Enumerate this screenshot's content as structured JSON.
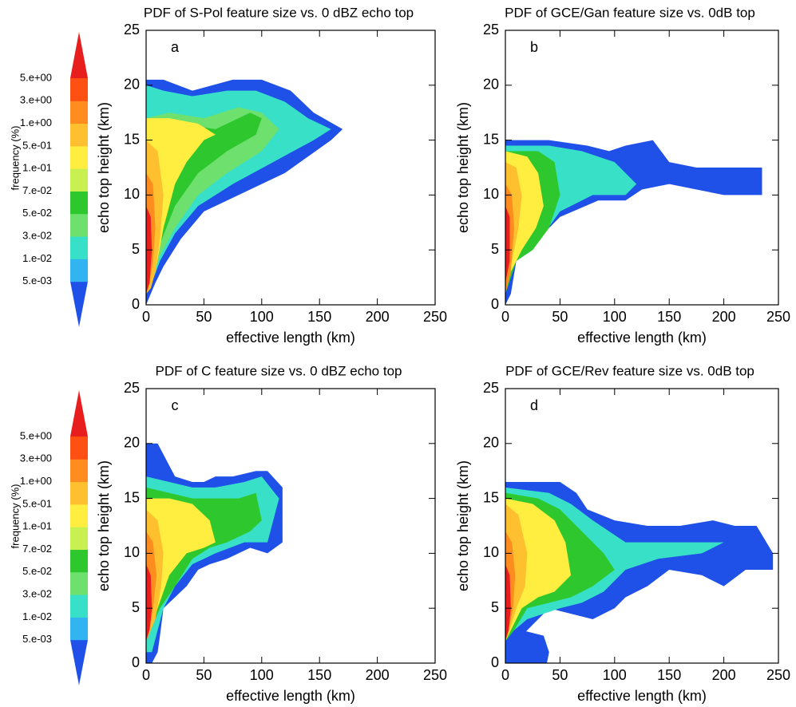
{
  "chart_data": [
    {
      "type": "contour",
      "title": "PDF of S-Pol feature size vs. 0 dBZ echo top",
      "panel_label": "a",
      "x_label": "effective length (km)",
      "y_label": "echo top height (km)",
      "xlim": [
        0,
        250
      ],
      "ylim": [
        0,
        25
      ],
      "xticks": [
        0,
        50,
        100,
        150,
        200,
        250
      ],
      "yticks": [
        0,
        5,
        10,
        15,
        20,
        25
      ],
      "regions": [
        {
          "color": "#1f50e8",
          "x": [
            0,
            15,
            40,
            75,
            100,
            125,
            145,
            170,
            160,
            120,
            80,
            50,
            30,
            15,
            8,
            0
          ],
          "y": [
            20.5,
            20.5,
            19.5,
            20.5,
            20.5,
            19.5,
            17.5,
            16,
            15,
            12,
            10,
            8.5,
            6,
            3.5,
            2,
            0
          ]
        },
        {
          "color": "#38e0c8",
          "x": [
            0,
            15,
            40,
            70,
            95,
            120,
            140,
            160,
            145,
            110,
            75,
            45,
            25,
            12,
            5,
            0
          ],
          "y": [
            20,
            19.5,
            19,
            19.5,
            19.5,
            18.5,
            17,
            16,
            15,
            13,
            11,
            9,
            6.5,
            4,
            2,
            1
          ]
        },
        {
          "color": "#6ee06e",
          "x": [
            0,
            20,
            50,
            80,
            100,
            115,
            100,
            70,
            45,
            25,
            12,
            5,
            0
          ],
          "y": [
            17,
            17.5,
            17,
            18,
            17.5,
            16,
            14,
            12,
            10,
            7,
            4.5,
            2,
            1.5
          ]
        },
        {
          "color": "#2ec82e",
          "x": [
            0,
            30,
            60,
            90,
            100,
            95,
            70,
            45,
            25,
            10,
            0
          ],
          "y": [
            17,
            16.5,
            16,
            17.5,
            17,
            15.5,
            14,
            12,
            9,
            5,
            1.5
          ]
        },
        {
          "color": "#ffee40",
          "x": [
            0,
            20,
            45,
            60,
            50,
            35,
            25,
            15,
            8,
            0
          ],
          "y": [
            17,
            17,
            16.5,
            15.5,
            15,
            13,
            11,
            7,
            3,
            1.5
          ]
        },
        {
          "color": "#ffc030",
          "x": [
            0,
            10,
            15,
            12,
            8,
            4,
            0
          ],
          "y": [
            15,
            14,
            10,
            6,
            3,
            1.5,
            1
          ]
        },
        {
          "color": "#ff8c1e",
          "x": [
            0,
            6,
            8,
            6,
            3,
            0
          ],
          "y": [
            12,
            11,
            7,
            4,
            2,
            1
          ]
        },
        {
          "color": "#e81e1e",
          "x": [
            0,
            4,
            5,
            3,
            0
          ],
          "y": [
            9,
            8,
            5,
            2,
            1
          ]
        }
      ]
    },
    {
      "type": "contour",
      "title": "PDF of GCE/Gan feature size vs. 0dB top",
      "panel_label": "b",
      "x_label": "effective length (km)",
      "y_label": "echo top height (km)",
      "xlim": [
        0,
        250
      ],
      "ylim": [
        0,
        25
      ],
      "xticks": [
        0,
        50,
        100,
        150,
        200,
        250
      ],
      "yticks": [
        0,
        5,
        10,
        15,
        20,
        25
      ],
      "regions": [
        {
          "color": "#1f50e8",
          "x": [
            0,
            40,
            75,
            95,
            110,
            135,
            150,
            175,
            200,
            235,
            235,
            200,
            175,
            150,
            125,
            110,
            85,
            50,
            20,
            10,
            5,
            0
          ],
          "y": [
            15,
            15,
            14.5,
            14,
            14.5,
            15,
            13,
            12.5,
            12.5,
            12.5,
            10,
            10,
            10.5,
            11,
            10.5,
            9.5,
            9.5,
            8,
            5,
            4,
            1,
            0
          ]
        },
        {
          "color": "#38e0c8",
          "x": [
            0,
            40,
            70,
            100,
            120,
            110,
            80,
            50,
            25,
            10,
            0
          ],
          "y": [
            14.5,
            14.5,
            14,
            13,
            11,
            10,
            10,
            8.5,
            5,
            4,
            1
          ]
        },
        {
          "color": "#2ec82e",
          "x": [
            0,
            30,
            45,
            50,
            40,
            25,
            10,
            0
          ],
          "y": [
            14,
            14,
            13,
            10,
            7,
            5,
            4,
            1
          ]
        },
        {
          "color": "#ffee40",
          "x": [
            0,
            20,
            30,
            35,
            28,
            15,
            5,
            0
          ],
          "y": [
            14,
            13.5,
            12,
            9,
            7,
            5,
            3,
            1
          ]
        },
        {
          "color": "#ffc030",
          "x": [
            0,
            10,
            15,
            12,
            6,
            0
          ],
          "y": [
            13,
            12.5,
            10,
            7,
            4,
            1
          ]
        },
        {
          "color": "#ff8c1e",
          "x": [
            0,
            6,
            8,
            5,
            0
          ],
          "y": [
            11,
            10,
            7,
            3,
            1
          ]
        },
        {
          "color": "#e81e1e",
          "x": [
            0,
            4,
            4,
            0
          ],
          "y": [
            9,
            8,
            4,
            2
          ]
        }
      ]
    },
    {
      "type": "contour",
      "title": "PDF of C feature size vs. 0 dBZ echo top",
      "panel_label": "c",
      "x_label": "effective length (km)",
      "y_label": "echo top height (km)",
      "xlim": [
        0,
        250
      ],
      "ylim": [
        0,
        25
      ],
      "xticks": [
        0,
        50,
        100,
        150,
        200,
        250
      ],
      "yticks": [
        0,
        5,
        10,
        15,
        20,
        25
      ],
      "regions": [
        {
          "color": "#1f50e8",
          "x": [
            0,
            10,
            25,
            40,
            50,
            60,
            75,
            95,
            105,
            118,
            118,
            105,
            90,
            80,
            70,
            55,
            45,
            35,
            25,
            15,
            12,
            10,
            5,
            0
          ],
          "y": [
            20,
            20,
            17,
            16.5,
            16.5,
            17,
            17,
            17.5,
            17.5,
            16,
            11,
            10,
            10.5,
            10,
            9.5,
            9,
            8.5,
            7,
            6,
            5,
            2.5,
            1,
            0,
            0
          ]
        },
        {
          "color": "#38e0c8",
          "x": [
            0,
            20,
            40,
            60,
            85,
            100,
            115,
            105,
            85,
            60,
            40,
            25,
            15,
            10,
            5,
            0
          ],
          "y": [
            17,
            16.5,
            16,
            16,
            16.5,
            17,
            15,
            11,
            11,
            10,
            9,
            7,
            5,
            3,
            1,
            1
          ]
        },
        {
          "color": "#2ec82e",
          "x": [
            0,
            20,
            40,
            60,
            80,
            95,
            100,
            90,
            70,
            55,
            40,
            25,
            12,
            0
          ],
          "y": [
            16,
            15.5,
            15,
            15,
            15,
            15.5,
            13,
            12,
            11,
            10.5,
            9.5,
            7,
            5,
            2
          ]
        },
        {
          "color": "#ffee40",
          "x": [
            0,
            20,
            40,
            55,
            60,
            50,
            35,
            20,
            10,
            0
          ],
          "y": [
            15,
            15,
            14.5,
            13,
            11,
            10.5,
            10,
            8,
            5,
            2
          ]
        },
        {
          "color": "#ffc030",
          "x": [
            0,
            10,
            15,
            13,
            8,
            0
          ],
          "y": [
            14,
            13,
            10,
            7,
            4,
            2
          ]
        },
        {
          "color": "#ff8c1e",
          "x": [
            0,
            6,
            9,
            6,
            3,
            0
          ],
          "y": [
            12,
            11,
            8,
            5,
            3,
            2
          ]
        },
        {
          "color": "#e81e1e",
          "x": [
            0,
            4,
            5,
            3,
            0
          ],
          "y": [
            9,
            8,
            5,
            3,
            2
          ]
        }
      ]
    },
    {
      "type": "contour",
      "title": "PDF of GCE/Rev feature size vs. 0dB top",
      "panel_label": "d",
      "x_label": "effective length (km)",
      "y_label": "echo top height (km)",
      "xlim": [
        0,
        250
      ],
      "ylim": [
        0,
        25
      ],
      "xticks": [
        0,
        50,
        100,
        150,
        200,
        250
      ],
      "yticks": [
        0,
        5,
        10,
        15,
        20,
        25
      ],
      "regions": [
        {
          "color": "#1f50e8",
          "x": [
            0,
            20,
            50,
            65,
            75,
            100,
            130,
            160,
            190,
            210,
            230,
            245,
            245,
            220,
            200,
            180,
            150,
            130,
            110,
            100,
            80,
            60,
            40,
            20,
            10,
            5,
            0
          ],
          "y": [
            16.5,
            16.5,
            16.5,
            15.5,
            14,
            13,
            12.5,
            12.5,
            13,
            12.5,
            12.5,
            10,
            8.5,
            8.5,
            7,
            8,
            8.5,
            7,
            6,
            5,
            4,
            4.5,
            5,
            3,
            2,
            0,
            0
          ]
        },
        {
          "color": "#1f50e8",
          "x": [
            0,
            15,
            35,
            40,
            38,
            10,
            0
          ],
          "y": [
            3,
            3,
            2.5,
            1,
            0,
            0,
            0
          ]
        },
        {
          "color": "#38e0c8",
          "x": [
            0,
            40,
            60,
            80,
            110,
            150,
            200,
            180,
            140,
            110,
            90,
            70,
            50,
            20,
            8,
            0
          ],
          "y": [
            16,
            15.5,
            14.5,
            13,
            11,
            11,
            11,
            10,
            9.5,
            8.5,
            6.5,
            5.5,
            5,
            4,
            3,
            2
          ]
        },
        {
          "color": "#2ec82e",
          "x": [
            0,
            30,
            50,
            70,
            90,
            100,
            80,
            60,
            40,
            20,
            8,
            0
          ],
          "y": [
            15.5,
            15,
            14,
            12,
            10,
            8.5,
            7,
            6,
            5.5,
            5,
            3,
            2
          ]
        },
        {
          "color": "#ffee40",
          "x": [
            0,
            25,
            45,
            55,
            60,
            45,
            30,
            15,
            5,
            0
          ],
          "y": [
            15,
            14.5,
            13,
            11,
            8,
            6.5,
            6,
            5,
            3,
            2
          ]
        },
        {
          "color": "#ffc030",
          "x": [
            0,
            12,
            20,
            18,
            10,
            4,
            0
          ],
          "y": [
            14.5,
            13.5,
            10,
            7,
            5,
            3,
            2
          ]
        },
        {
          "color": "#ff8c1e",
          "x": [
            0,
            6,
            9,
            7,
            3,
            0
          ],
          "y": [
            12,
            11,
            8,
            5,
            3,
            2
          ]
        },
        {
          "color": "#e81e1e",
          "x": [
            0,
            4,
            5,
            3,
            0
          ],
          "y": [
            9,
            8,
            5,
            3,
            2
          ]
        }
      ]
    }
  ],
  "colorbar": {
    "label": "frequency (%)",
    "colors": [
      "#1f50e8",
      "#32b4f0",
      "#38e0c8",
      "#6ee06e",
      "#2ec82e",
      "#c8f050",
      "#ffee40",
      "#ffc030",
      "#ff8c1e",
      "#ff5014",
      "#e81e1e"
    ],
    "ticks": [
      {
        "value": 0.005,
        "label": "5.e-03"
      },
      {
        "value": 0.01,
        "label": "1.e-02"
      },
      {
        "value": 0.03,
        "label": "3.e-02"
      },
      {
        "value": 0.05,
        "label": "5.e-02"
      },
      {
        "value": 0.07,
        "label": "7.e-02"
      },
      {
        "value": 0.1,
        "label": "1.e-01"
      },
      {
        "value": 0.5,
        "label": "5.e-01"
      },
      {
        "value": 1,
        "label": "1.e+00"
      },
      {
        "value": 3,
        "label": "3.e+00"
      },
      {
        "value": 5,
        "label": "5.e+00"
      }
    ]
  }
}
